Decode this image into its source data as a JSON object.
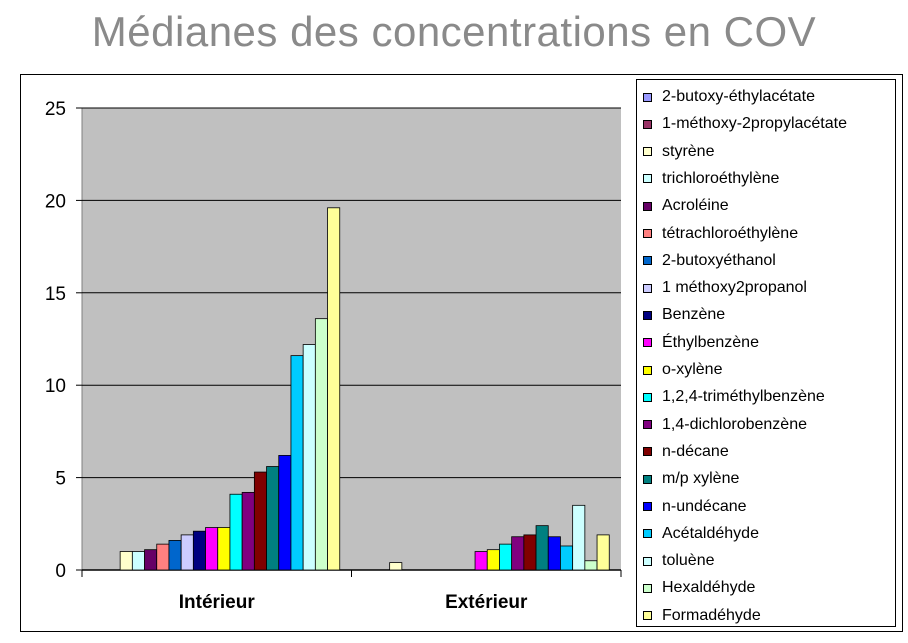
{
  "chart_data": {
    "type": "bar",
    "title": "Médianes des concentrations en COV",
    "categories": [
      "Intérieur",
      "Extérieur"
    ],
    "ylim": [
      0,
      25
    ],
    "yticks": [
      0,
      5,
      10,
      15,
      20,
      25
    ],
    "grid": true,
    "legend_position": "right",
    "series": [
      {
        "name": "2-butoxy-éthylacétate",
        "color": "#9999ff",
        "values": [
          0,
          0
        ]
      },
      {
        "name": "1-méthoxy-2propylacétate",
        "color": "#993366",
        "values": [
          0,
          0
        ]
      },
      {
        "name": "styrène",
        "color": "#ffffcc",
        "values": [
          1.0,
          0.4
        ]
      },
      {
        "name": "trichloroéthylène",
        "color": "#ccffff",
        "values": [
          1.0,
          0
        ]
      },
      {
        "name": "Acroléine",
        "color": "#660066",
        "values": [
          1.1,
          0
        ]
      },
      {
        "name": "tétrachloroéthylène",
        "color": "#ff8080",
        "values": [
          1.4,
          0
        ]
      },
      {
        "name": "2-butoxyéthanol",
        "color": "#0066cc",
        "values": [
          1.6,
          0
        ]
      },
      {
        "name": "1 méthoxy2propanol",
        "color": "#ccccff",
        "values": [
          1.9,
          0
        ]
      },
      {
        "name": "Benzène",
        "color": "#000080",
        "values": [
          2.1,
          0
        ]
      },
      {
        "name": "Éthylbenzène",
        "color": "#ff00ff",
        "values": [
          2.3,
          1.0
        ]
      },
      {
        "name": "o-xylène",
        "color": "#ffff00",
        "values": [
          2.3,
          1.1
        ]
      },
      {
        "name": "1,2,4-triméthylbenzène",
        "color": "#00ffff",
        "values": [
          4.1,
          1.4
        ]
      },
      {
        "name": "1,4-dichlorobenzène",
        "color": "#800080",
        "values": [
          4.2,
          1.8
        ]
      },
      {
        "name": "n-décane",
        "color": "#800000",
        "values": [
          5.3,
          1.9
        ]
      },
      {
        "name": "m/p xylène",
        "color": "#008080",
        "values": [
          5.6,
          2.4
        ]
      },
      {
        "name": "n-undécane",
        "color": "#0000ff",
        "values": [
          6.2,
          1.8
        ]
      },
      {
        "name": "Acétaldéhyde",
        "color": "#00ccff",
        "values": [
          11.6,
          1.3
        ]
      },
      {
        "name": "toluène",
        "color": "#ccffff",
        "values": [
          12.2,
          3.5
        ]
      },
      {
        "name": "Hexaldéhyde",
        "color": "#ccffcc",
        "values": [
          13.6,
          0.5
        ]
      },
      {
        "name": "Formadéhyde",
        "color": "#ffff99",
        "values": [
          19.6,
          1.9
        ]
      }
    ]
  },
  "colors": {
    "plot_background": "#c0c0c0",
    "gridline": "#000000",
    "title": "#8a8a8a"
  }
}
